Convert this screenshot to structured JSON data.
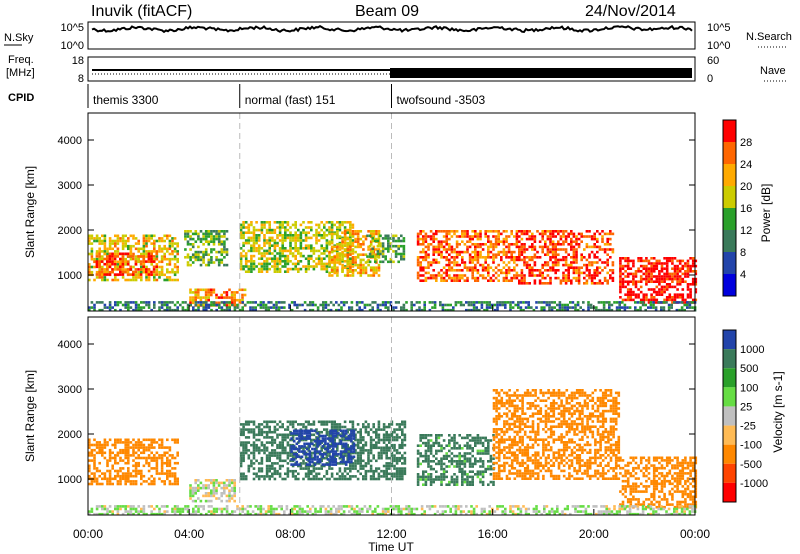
{
  "header": {
    "station": "Inuvik (fitACF)",
    "beam": "Beam 09",
    "date": "24/Nov/2014"
  },
  "noise_panel": {
    "left_label": "N.Sky",
    "left_ticks": [
      "10^5",
      "10^0"
    ],
    "right_label": "N.Search",
    "right_ticks": [
      "10^5",
      "10^0"
    ]
  },
  "freq_panel": {
    "left_label_1": "Freq.",
    "left_label_2": "[MHz]",
    "left_ticks": [
      "18",
      "8"
    ],
    "right_label": "Nave",
    "right_ticks": [
      "60",
      "0"
    ]
  },
  "cpid_panel": {
    "label": "CPID",
    "modes": [
      {
        "name": "themis 3300",
        "start_hour": 0,
        "end_hour": 6
      },
      {
        "name": "normal (fast) 151",
        "start_hour": 6,
        "end_hour": 12
      },
      {
        "name": "twofsound -3503",
        "start_hour": 12,
        "end_hour": 24
      }
    ]
  },
  "colors": {
    "power_scale": [
      "#0000dd",
      "#2244aa",
      "#3a7a5a",
      "#2aa02a",
      "#cccc00",
      "#ffaa00",
      "#ff6600",
      "#ff0000"
    ],
    "velocity_scale": [
      "#2244aa",
      "#3a7a5a",
      "#2aa02a",
      "#66dd44",
      "#c0c0c0",
      "#ffbb55",
      "#ff8800",
      "#ff4400",
      "#ff0000"
    ],
    "ground_scatter": "#bbbbbb"
  },
  "chart_data": [
    {
      "type": "heatmap",
      "name": "power",
      "xlabel": "",
      "ylabel": "Slant Range [km]",
      "xlim": [
        0,
        24
      ],
      "ylim": [
        200,
        4600
      ],
      "y_ticks": [
        "1000",
        "2000",
        "3000",
        "4000"
      ],
      "colorbar": {
        "label": "Power [dB]",
        "ticks": [
          "4",
          "8",
          "12",
          "16",
          "20",
          "24",
          "28"
        ],
        "range": [
          0,
          32
        ]
      },
      "echo_regions": [
        {
          "t0": 0.0,
          "t1": 3.5,
          "r0": 900,
          "r1": 1900,
          "value": 20
        },
        {
          "t0": 0.3,
          "t1": 2.7,
          "r0": 1000,
          "r1": 1500,
          "value": 28
        },
        {
          "t0": 3.8,
          "t1": 5.5,
          "r0": 1200,
          "r1": 2000,
          "value": 14
        },
        {
          "t0": 4.0,
          "t1": 6.2,
          "r0": 300,
          "r1": 700,
          "value": 24
        },
        {
          "t0": 6.0,
          "t1": 10.5,
          "r0": 1100,
          "r1": 2200,
          "value": 18
        },
        {
          "t0": 9.5,
          "t1": 11.5,
          "r0": 1000,
          "r1": 2000,
          "value": 22
        },
        {
          "t0": 11.0,
          "t1": 12.5,
          "r0": 1300,
          "r1": 1900,
          "value": 14
        },
        {
          "t0": 13.0,
          "t1": 17.0,
          "r0": 900,
          "r1": 2000,
          "value": 26
        },
        {
          "t0": 17.0,
          "t1": 20.8,
          "r0": 800,
          "r1": 2000,
          "value": 28
        },
        {
          "t0": 21.0,
          "t1": 24.0,
          "r0": 400,
          "r1": 1400,
          "value": 30
        },
        {
          "t0": 0.0,
          "t1": 24.0,
          "r0": 200,
          "r1": 420,
          "value": 10
        }
      ]
    },
    {
      "type": "heatmap",
      "name": "velocity",
      "xlabel": "Time UT",
      "ylabel": "Slant Range [km]",
      "xlim": [
        0,
        24
      ],
      "ylim": [
        200,
        4600
      ],
      "x_ticks": [
        "00:00",
        "04:00",
        "08:00",
        "12:00",
        "16:00",
        "20:00",
        "00:00"
      ],
      "y_ticks": [
        "1000",
        "2000",
        "3000",
        "4000"
      ],
      "colorbar": {
        "label": "Velocity [m s-1]",
        "ticks": [
          "1000",
          "500",
          "100",
          "25",
          "-25",
          "-100",
          "-500",
          "-1000"
        ]
      },
      "echo_regions": [
        {
          "t0": 0.0,
          "t1": 3.5,
          "r0": 900,
          "r1": 1900,
          "value": -300
        },
        {
          "t0": 4.0,
          "t1": 5.8,
          "r0": 500,
          "r1": 1000,
          "value": 0
        },
        {
          "t0": 6.0,
          "t1": 12.5,
          "r0": 1000,
          "r1": 2300,
          "value": 200
        },
        {
          "t0": 8.0,
          "t1": 10.5,
          "r0": 1300,
          "r1": 2100,
          "value": 800
        },
        {
          "t0": 13.0,
          "t1": 16.0,
          "r0": 900,
          "r1": 2000,
          "value": 150
        },
        {
          "t0": 16.0,
          "t1": 21.0,
          "r0": 1000,
          "r1": 3000,
          "value": -400
        },
        {
          "t0": 21.0,
          "t1": 24.0,
          "r0": 400,
          "r1": 1500,
          "value": -250
        },
        {
          "t0": 0.0,
          "t1": 24.0,
          "r0": 200,
          "r1": 420,
          "value": 20
        }
      ]
    }
  ]
}
